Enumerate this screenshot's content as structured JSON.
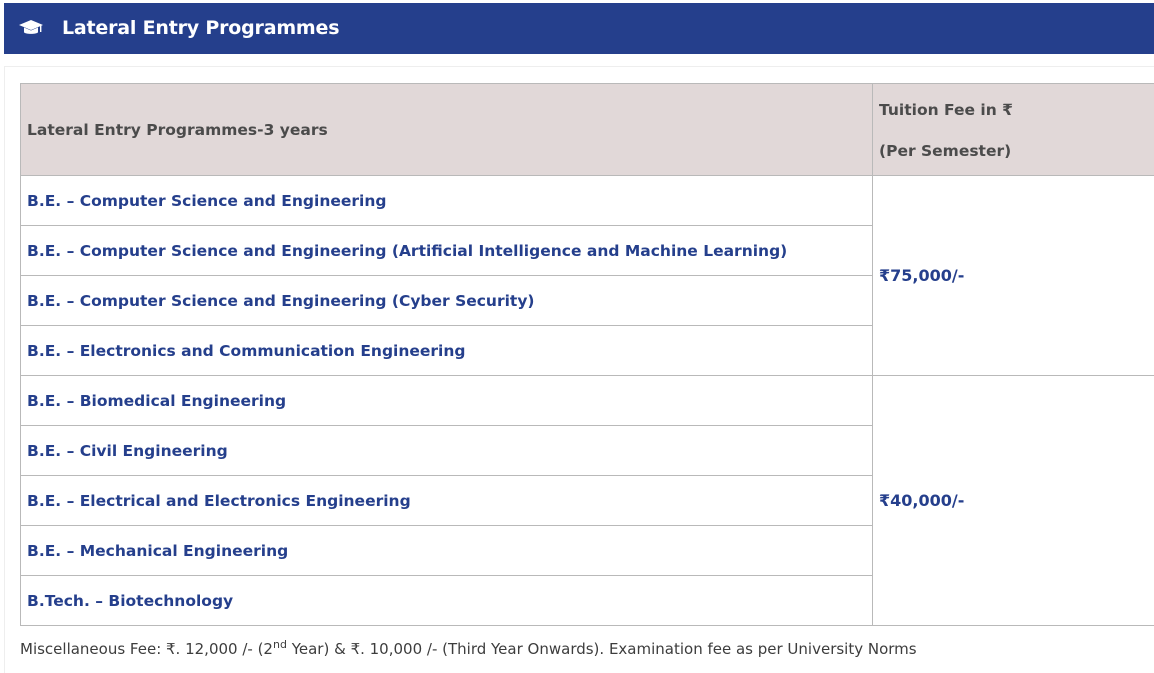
{
  "header": {
    "icon": "graduation-cap-icon",
    "title": "Lateral Entry Programmes",
    "background_color": "#253f8c"
  },
  "table": {
    "headers": {
      "programme": "Lateral Entry Programmes-3 years",
      "fee_line1": "Tuition Fee in ₹",
      "fee_line2": "(Per Semester)"
    },
    "header_background_color": "#e1d8d8",
    "text_color": "#253f8c",
    "groups": [
      {
        "fee": "₹75,000/-",
        "programmes": [
          "B.E. – Computer Science and Engineering",
          "B.E. – Computer Science and Engineering (Artificial Intelligence and Machine Learning)",
          "B.E. – Computer Science and Engineering (Cyber Security)",
          "B.E. – Electronics and Communication Engineering"
        ]
      },
      {
        "fee": "₹40,000/-",
        "programmes": [
          "B.E. – Biomedical Engineering",
          "B.E. – Civil Engineering",
          "B.E. – Electrical and Electronics Engineering",
          "B.E. – Mechanical Engineering",
          "B.Tech. – Biotechnology"
        ]
      }
    ]
  },
  "note": {
    "part1": "Miscellaneous Fee: ₹. 12,000 /- (2",
    "sup": "nd",
    "part2": " Year) & ₹. 10,000 /- (Third Year Onwards). Examination fee as per University Norms"
  }
}
